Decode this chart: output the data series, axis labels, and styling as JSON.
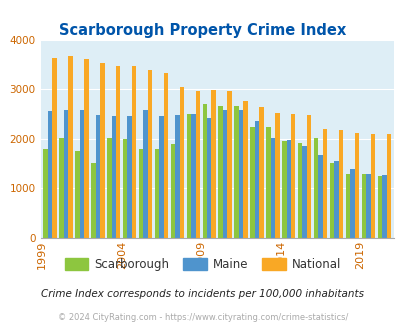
{
  "title": "Scarborough Property Crime Index",
  "years": [
    1999,
    2000,
    2001,
    2002,
    2003,
    2004,
    2005,
    2006,
    2007,
    2008,
    2009,
    2010,
    2011,
    2012,
    2013,
    2014,
    2015,
    2016,
    2017,
    2018,
    2019,
    2020
  ],
  "scarborough": [
    1800,
    2020,
    1750,
    1510,
    2010,
    2000,
    1800,
    1800,
    1890,
    2500,
    2700,
    2650,
    2650,
    2230,
    2230,
    1960,
    1920,
    2020,
    1510,
    1290,
    1280,
    1250
  ],
  "maine": [
    2560,
    2580,
    2570,
    2470,
    2460,
    2450,
    2570,
    2460,
    2470,
    2490,
    2420,
    2580,
    2570,
    2360,
    2010,
    1980,
    1850,
    1660,
    1540,
    1380,
    1280,
    1260
  ],
  "national": [
    3620,
    3660,
    3610,
    3520,
    3470,
    3460,
    3380,
    3320,
    3050,
    2970,
    2980,
    2970,
    2750,
    2630,
    2510,
    2500,
    2470,
    2200,
    2180,
    2110,
    2100,
    2100
  ],
  "scarborough_color": "#8dc63f",
  "maine_color": "#4f94cd",
  "national_color": "#f9a825",
  "bg_color": "#deeef6",
  "title_color": "#0055aa",
  "tick_label_color": "#cc6600",
  "ytick_label_color": "#cc6600",
  "footer_text": "Crime Index corresponds to incidents per 100,000 inhabitants",
  "copyright_text": "© 2024 CityRating.com - https://www.cityrating.com/crime-statistics/",
  "ylim": [
    0,
    4000
  ],
  "yticks": [
    0,
    1000,
    2000,
    3000,
    4000
  ],
  "xtick_years": [
    1999,
    2004,
    2009,
    2014,
    2019
  ]
}
